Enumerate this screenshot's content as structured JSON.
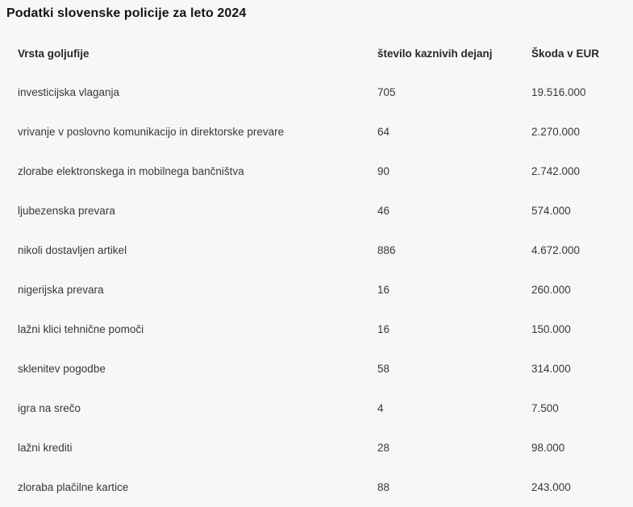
{
  "page": {
    "title": "Podatki slovenske policije za leto 2024"
  },
  "table": {
    "columns": {
      "fraud_type": "Vrsta goljufije",
      "count": "število kaznivih dejanj",
      "damage": "Škoda v EUR"
    },
    "rows": [
      {
        "type": "investicijska vlaganja",
        "count": "705",
        "damage": "19.516.000"
      },
      {
        "type": "vrivanje v poslovno komunikacijo in direktorske prevare",
        "count": "64",
        "damage": "2.270.000"
      },
      {
        "type": "zlorabe elektronskega in mobilnega bančništva",
        "count": "90",
        "damage": "2.742.000"
      },
      {
        "type": "ljubezenska prevara",
        "count": "46",
        "damage": "574.000"
      },
      {
        "type": "nikoli dostavljen artikel",
        "count": "886",
        "damage": "4.672.000"
      },
      {
        "type": "nigerijska prevara",
        "count": "16",
        "damage": "260.000"
      },
      {
        "type": "lažni klici tehnične pomoči",
        "count": "16",
        "damage": "150.000"
      },
      {
        "type": "sklenitev pogodbe",
        "count": "58",
        "damage": "314.000"
      },
      {
        "type": "igra na srečo",
        "count": "4",
        "damage": "7.500"
      },
      {
        "type": "lažni krediti",
        "count": "28",
        "damage": "98.000"
      },
      {
        "type": "zloraba plačilne kartice",
        "count": "88",
        "damage": "243.000"
      }
    ]
  },
  "chart_data": {
    "type": "table",
    "title": "Podatki slovenske policije za leto 2024",
    "columns": [
      "Vrsta goljufije",
      "število kaznivih dejanj",
      "Škoda v EUR"
    ],
    "rows": [
      [
        "investicijska vlaganja",
        705,
        19516000
      ],
      [
        "vrivanje v poslovno komunikacijo in direktorske prevare",
        64,
        2270000
      ],
      [
        "zlorabe elektronskega in mobilnega bančništva",
        90,
        2742000
      ],
      [
        "ljubezenska prevara",
        46,
        574000
      ],
      [
        "nikoli dostavljen artikel",
        886,
        4672000
      ],
      [
        "nigerijska prevara",
        16,
        260000
      ],
      [
        "lažni klici tehnične pomoči",
        16,
        150000
      ],
      [
        "sklenitev pogodbe",
        58,
        314000
      ],
      [
        "igra na srečo",
        4,
        7500
      ],
      [
        "lažni krediti",
        28,
        98000
      ],
      [
        "zloraba plačilne kartice",
        88,
        243000
      ]
    ],
    "layout": {
      "gridlines": false,
      "background": "#f7f7f7",
      "text_color": "#35383a",
      "header_bold": true
    }
  }
}
